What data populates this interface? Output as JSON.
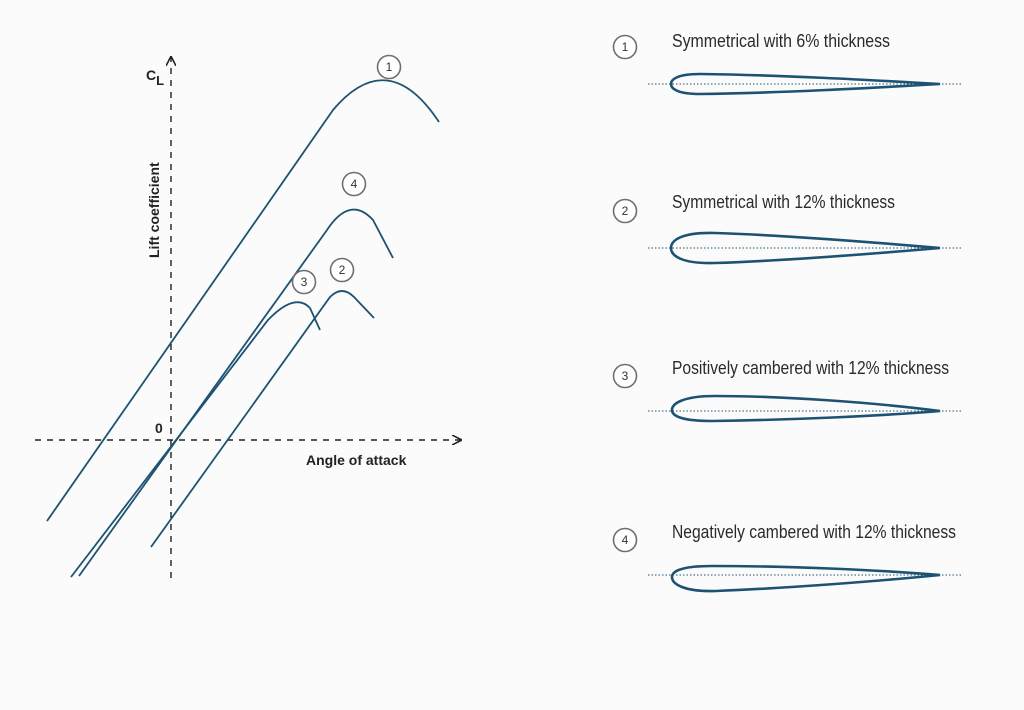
{
  "axes": {
    "y_label": "Lift coefficient",
    "cl_symbol": "C",
    "cl_subscript": "L",
    "x_label": "Angle of attack",
    "origin_label": "0"
  },
  "curve_badges": [
    "1",
    "4",
    "3",
    "2"
  ],
  "legend": [
    {
      "number": "1",
      "text": "Symmetrical with 6% thickness"
    },
    {
      "number": "2",
      "text": "Symmetrical with 12% thickness"
    },
    {
      "number": "3",
      "text": "Positively cambered with 12% thickness"
    },
    {
      "number": "4",
      "text": "Negatively cambered with 12% thickness"
    }
  ],
  "colors": {
    "curve": "#1d5273",
    "axis": "#222222",
    "badge_stroke": "#6f6f6f"
  }
}
